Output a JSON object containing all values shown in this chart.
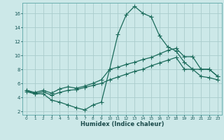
{
  "xlabel": "Humidex (Indice chaleur)",
  "background_color": "#cce8e8",
  "grid_color": "#aacccc",
  "line_color": "#1a6a5a",
  "xlim": [
    -0.5,
    23.5
  ],
  "ylim": [
    1.5,
    17.5
  ],
  "xticks": [
    0,
    1,
    2,
    3,
    4,
    5,
    6,
    7,
    8,
    9,
    10,
    11,
    12,
    13,
    14,
    15,
    16,
    17,
    18,
    19,
    20,
    21,
    22,
    23
  ],
  "yticks": [
    2,
    4,
    6,
    8,
    10,
    12,
    14,
    16
  ],
  "line1_x": [
    0,
    1,
    2,
    3,
    4,
    5,
    6,
    7,
    8,
    9,
    10,
    11,
    12,
    13,
    14,
    15,
    16,
    17,
    18,
    19,
    20,
    21,
    22,
    23
  ],
  "line1_y": [
    5.0,
    4.5,
    4.5,
    3.6,
    3.3,
    2.9,
    2.5,
    2.2,
    2.9,
    3.3,
    8.0,
    13.0,
    15.8,
    17.0,
    16.0,
    15.5,
    12.8,
    11.2,
    10.6,
    9.0,
    8.0,
    8.0,
    8.0,
    7.0
  ],
  "line2_x": [
    0,
    1,
    2,
    3,
    4,
    5,
    6,
    7,
    8,
    9,
    10,
    11,
    12,
    13,
    14,
    15,
    16,
    17,
    18,
    19,
    20,
    21,
    22,
    23
  ],
  "line2_y": [
    5.0,
    4.7,
    5.0,
    4.6,
    5.2,
    5.5,
    5.3,
    5.6,
    6.0,
    6.5,
    8.0,
    8.3,
    8.7,
    9.0,
    9.4,
    9.7,
    10.2,
    10.7,
    11.0,
    9.8,
    9.8,
    8.0,
    8.0,
    7.0
  ],
  "line3_x": [
    0,
    1,
    2,
    3,
    4,
    5,
    6,
    7,
    8,
    9,
    10,
    11,
    12,
    13,
    14,
    15,
    16,
    17,
    18,
    19,
    20,
    21,
    22,
    23
  ],
  "line3_y": [
    4.8,
    4.5,
    4.8,
    4.3,
    4.7,
    5.0,
    5.1,
    5.4,
    5.7,
    6.0,
    6.5,
    6.9,
    7.3,
    7.7,
    8.0,
    8.5,
    8.9,
    9.3,
    9.7,
    8.0,
    8.0,
    7.0,
    6.8,
    6.5
  ]
}
